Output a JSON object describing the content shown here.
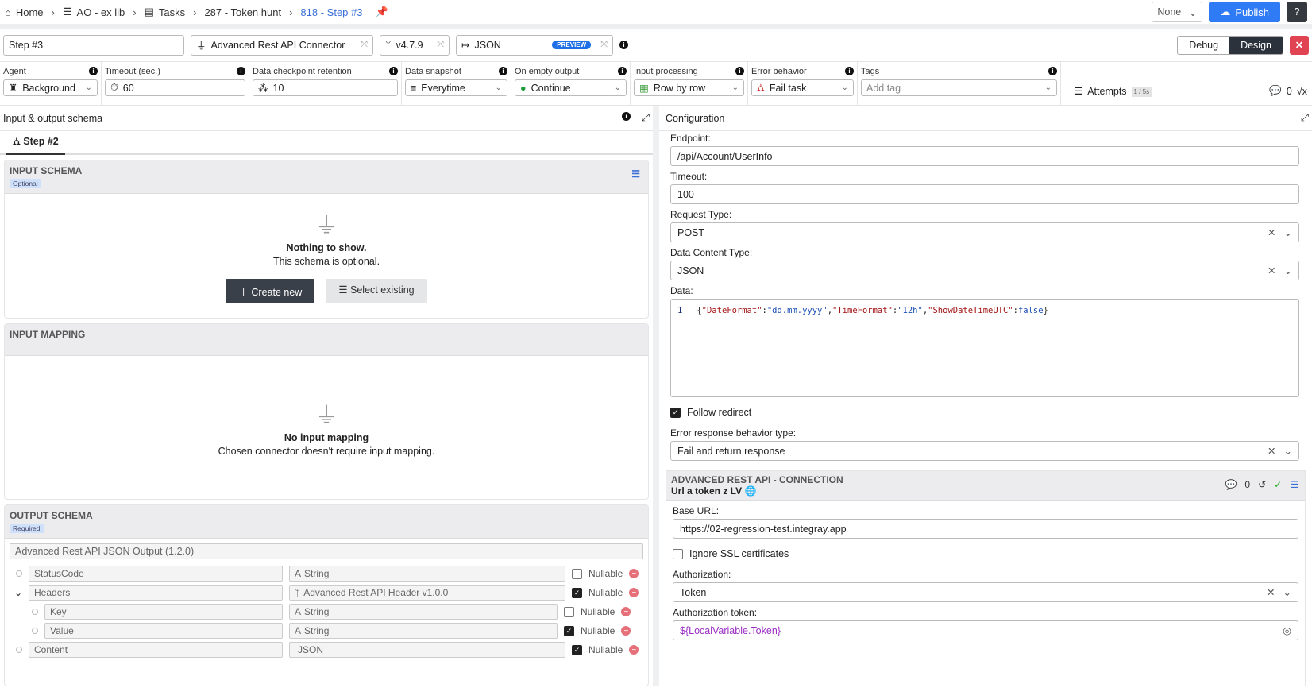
{
  "breadcrumb": [
    {
      "icon": "home-icon",
      "label": "Home"
    },
    {
      "icon": "database-icon",
      "label": "AO - ex lib"
    },
    {
      "icon": "tasks-icon",
      "label": "Tasks"
    },
    {
      "label": "287 - Token hunt"
    },
    {
      "label": "818 - Step #3",
      "current": true
    }
  ],
  "header": {
    "env_select": "None",
    "publish": "Publish"
  },
  "step": {
    "name": "Step #3",
    "connector": "Advanced Rest API Connector",
    "version": "v4.7.9",
    "format": "JSON",
    "format_badge": "PREVIEW",
    "modes": [
      "Debug",
      "Design"
    ],
    "active_mode": "Design"
  },
  "settings": {
    "agent": {
      "label": "Agent",
      "value": "Background"
    },
    "timeout": {
      "label": "Timeout (sec.)",
      "value": "60"
    },
    "retention": {
      "label": "Data checkpoint retention",
      "value": "10"
    },
    "snapshot": {
      "label": "Data snapshot",
      "value": "Everytime"
    },
    "empty": {
      "label": "On empty output",
      "value": "Continue"
    },
    "input": {
      "label": "Input processing",
      "value": "Row by row"
    },
    "error": {
      "label": "Error behavior",
      "value": "Fail task"
    },
    "tags": {
      "label": "Tags",
      "placeholder": "Add tag"
    },
    "attempts": {
      "label": "Attempts",
      "badge": "1 / 5s"
    },
    "comments": "0"
  },
  "left": {
    "title": "Input & output schema",
    "tab": "Step #2",
    "input_schema": {
      "title": "INPUT SCHEMA",
      "pill": "Optional",
      "empty_title": "Nothing to show.",
      "empty_sub": "This schema is optional.",
      "create": "Create new",
      "select": "Select existing"
    },
    "input_mapping": {
      "title": "INPUT MAPPING",
      "empty_title": "No input mapping",
      "empty_sub": "Chosen connector doesn't require input mapping."
    },
    "output_schema": {
      "title": "OUTPUT SCHEMA",
      "pill": "Required",
      "schema_name": "Advanced Rest API JSON Output (1.2.0)",
      "nullable_label": "Nullable",
      "rows": [
        {
          "name": "StatusCode",
          "type": "String",
          "type_icon": "text-icon",
          "nullable": false,
          "level": 0
        },
        {
          "name": "Headers",
          "type": "Advanced Rest API Header v1.0.0",
          "type_icon": "schema-icon",
          "nullable": true,
          "level": 0,
          "expanded": true
        },
        {
          "name": "Key",
          "type": "String",
          "type_icon": "text-icon",
          "nullable": false,
          "level": 1
        },
        {
          "name": "Value",
          "type": "String",
          "type_icon": "text-icon",
          "nullable": true,
          "level": 1
        },
        {
          "name": "Content",
          "type": "JSON",
          "type_icon": "code-icon",
          "nullable": true,
          "level": 0
        }
      ]
    }
  },
  "right": {
    "title": "Configuration",
    "endpoint": {
      "label": "Endpoint:",
      "value": "/api/Account/UserInfo"
    },
    "timeout": {
      "label": "Timeout:",
      "value": "100"
    },
    "request_type": {
      "label": "Request Type:",
      "value": "POST"
    },
    "content_type": {
      "label": "Data Content Type:",
      "value": "JSON"
    },
    "data": {
      "label": "Data:",
      "line": "1",
      "code": "{\"DateFormat\":\"dd.mm.yyyy\",\"TimeFormat\":\"12h\",\"ShowDateTimeUTC\":false}"
    },
    "follow_redirect": {
      "label": "Follow redirect",
      "checked": true
    },
    "error_behavior": {
      "label": "Error response behavior type:",
      "value": "Fail and return response"
    },
    "connection": {
      "title": "ADVANCED REST API - CONNECTION",
      "name": "Url a token z LV",
      "comments": "0",
      "base_url": {
        "label": "Base URL:",
        "value": "https://02-regression-test.integray.app"
      },
      "ignore_ssl": {
        "label": "Ignore SSL certificates",
        "checked": false
      },
      "authorization": {
        "label": "Authorization:",
        "value": "Token"
      },
      "token": {
        "label": "Authorization token:",
        "value": "${LocalVariable.Token}"
      }
    }
  }
}
